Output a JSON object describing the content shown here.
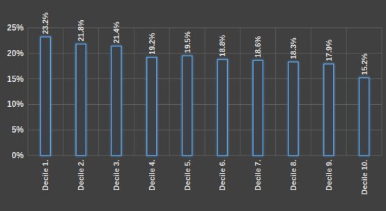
{
  "chart_data": {
    "type": "bar",
    "categories": [
      "Decile 1.",
      "Decile 2.",
      "Decile 3.",
      "Decile 4.",
      "Decile 5.",
      "Decile 6.",
      "Decile 7.",
      "Decile 8.",
      "Decile 9.",
      "Decile 10."
    ],
    "values": [
      23.2,
      21.8,
      21.4,
      19.2,
      19.5,
      18.8,
      18.6,
      18.3,
      17.9,
      15.2
    ],
    "value_labels": [
      "23.2%",
      "21.8%",
      "21.4%",
      "19.2%",
      "19.5%",
      "18.8%",
      "18.6%",
      "18.3%",
      "17.9%",
      "15.2%"
    ],
    "color": "#5b9bd5",
    "ylim": [
      0,
      25
    ],
    "yticks": [
      {
        "value": 0,
        "label": "0%"
      },
      {
        "value": 5,
        "label": "5%"
      },
      {
        "value": 10,
        "label": "10%"
      },
      {
        "value": 15,
        "label": "15%"
      },
      {
        "value": 20,
        "label": "20%"
      },
      {
        "value": 25,
        "label": "25%"
      }
    ],
    "grid": true,
    "data_labels": true
  }
}
